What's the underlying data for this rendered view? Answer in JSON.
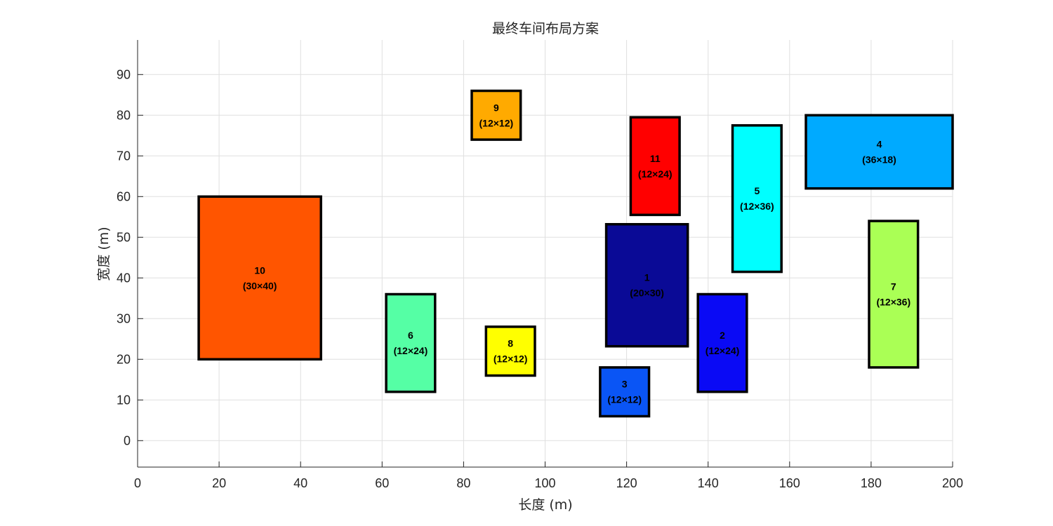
{
  "chart_data": {
    "type": "rectangles",
    "title": "最终车间布局方案",
    "xlabel": "长度 (m)",
    "ylabel": "宽度 (m)",
    "xlim": [
      0,
      200
    ],
    "ylim": [
      -6.5,
      98.5
    ],
    "xticks": [
      0,
      20,
      40,
      60,
      80,
      100,
      120,
      140,
      160,
      180,
      200
    ],
    "yticks": [
      0,
      10,
      20,
      30,
      40,
      50,
      60,
      70,
      80,
      90
    ],
    "grid": true,
    "blocks": [
      {
        "id": "1",
        "size": "(20×30)",
        "x": 115.0,
        "y": 23.2,
        "w": 20,
        "h": 30,
        "color": "#0a0a96"
      },
      {
        "id": "2",
        "size": "(12×24)",
        "x": 137.5,
        "y": 12.0,
        "w": 12,
        "h": 24,
        "color": "#0a0af5"
      },
      {
        "id": "3",
        "size": "(12×12)",
        "x": 113.5,
        "y": 6.0,
        "w": 12,
        "h": 12,
        "color": "#0a55f5"
      },
      {
        "id": "4",
        "size": "(36×18)",
        "x": 164.0,
        "y": 62.0,
        "w": 36,
        "h": 18,
        "color": "#00aaff"
      },
      {
        "id": "5",
        "size": "(12×36)",
        "x": 146.0,
        "y": 41.5,
        "w": 12,
        "h": 36,
        "color": "#00ffff"
      },
      {
        "id": "6",
        "size": "(12×24)",
        "x": 61.0,
        "y": 12.0,
        "w": 12,
        "h": 24,
        "color": "#55ffa5"
      },
      {
        "id": "7",
        "size": "(12×36)",
        "x": 179.5,
        "y": 18.0,
        "w": 12,
        "h": 36,
        "color": "#aaff55"
      },
      {
        "id": "8",
        "size": "(12×12)",
        "x": 85.5,
        "y": 16.0,
        "w": 12,
        "h": 12,
        "color": "#ffff00"
      },
      {
        "id": "9",
        "size": "(12×12)",
        "x": 82.0,
        "y": 74.0,
        "w": 12,
        "h": 12,
        "color": "#ffaa00"
      },
      {
        "id": "10",
        "size": "(30×40)",
        "x": 15.0,
        "y": 20.0,
        "w": 30,
        "h": 40,
        "color": "#ff5500"
      },
      {
        "id": "11",
        "size": "(12×24)",
        "x": 121.0,
        "y": 55.5,
        "w": 12,
        "h": 24,
        "color": "#ff0000"
      }
    ]
  }
}
